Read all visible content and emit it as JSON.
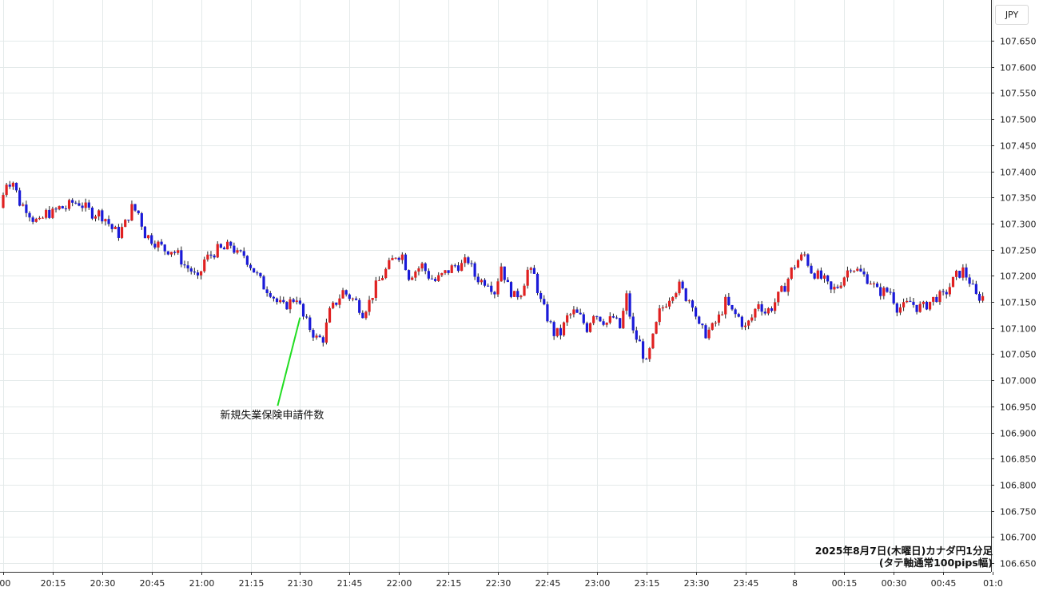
{
  "chart_data": {
    "type": "candlestick",
    "currency": "JPY",
    "caption_line1": "2025年8月7日(木曜日)カナダ円1分足",
    "caption_line2": "(タテ軸通常100pips幅)",
    "y_ticks": [
      "107.650",
      "107.600",
      "107.550",
      "107.500",
      "107.450",
      "107.400",
      "107.350",
      "107.300",
      "107.250",
      "107.200",
      "107.150",
      "107.100",
      "107.050",
      "107.000",
      "106.950",
      "106.900",
      "106.850",
      "106.800",
      "106.750",
      "106.700",
      "106.650"
    ],
    "ylim": [
      106.64,
      107.695
    ],
    "x_ticks": [
      ":00",
      "20:15",
      "20:30",
      "20:45",
      "21:00",
      "21:15",
      "21:30",
      "21:45",
      "22:00",
      "22:15",
      "22:30",
      "22:45",
      "23:00",
      "23:15",
      "23:30",
      "23:45",
      "8",
      "00:15",
      "00:30",
      "00:45",
      "01:0"
    ],
    "x_range_minutes": [
      0,
      300
    ],
    "up_color": "#e02020",
    "down_color": "#1a1ad8",
    "annotation": {
      "text": "新規失業保険申請件数",
      "minute": 90,
      "price": 107.12
    },
    "price_path": [
      [
        0,
        107.33
      ],
      [
        2,
        107.38
      ],
      [
        4,
        107.38
      ],
      [
        6,
        107.34
      ],
      [
        8,
        107.33
      ],
      [
        10,
        107.31
      ],
      [
        12,
        107.3
      ],
      [
        14,
        107.32
      ],
      [
        16,
        107.32
      ],
      [
        18,
        107.33
      ],
      [
        20,
        107.33
      ],
      [
        22,
        107.34
      ],
      [
        24,
        107.34
      ],
      [
        26,
        107.33
      ],
      [
        28,
        107.32
      ],
      [
        30,
        107.32
      ],
      [
        32,
        107.31
      ],
      [
        34,
        107.29
      ],
      [
        36,
        107.28
      ],
      [
        38,
        107.3
      ],
      [
        40,
        107.33
      ],
      [
        42,
        107.32
      ],
      [
        44,
        107.28
      ],
      [
        46,
        107.27
      ],
      [
        48,
        107.26
      ],
      [
        50,
        107.25
      ],
      [
        52,
        107.25
      ],
      [
        54,
        107.24
      ],
      [
        56,
        107.22
      ],
      [
        58,
        107.21
      ],
      [
        60,
        107.19
      ],
      [
        62,
        107.23
      ],
      [
        64,
        107.24
      ],
      [
        66,
        107.25
      ],
      [
        68,
        107.25
      ],
      [
        70,
        107.26
      ],
      [
        72,
        107.24
      ],
      [
        74,
        107.24
      ],
      [
        76,
        107.22
      ],
      [
        78,
        107.2
      ],
      [
        80,
        107.18
      ],
      [
        82,
        107.17
      ],
      [
        84,
        107.15
      ],
      [
        86,
        107.14
      ],
      [
        88,
        107.15
      ],
      [
        90,
        107.16
      ],
      [
        92,
        107.12
      ],
      [
        94,
        107.1
      ],
      [
        96,
        107.08
      ],
      [
        98,
        107.08
      ],
      [
        100,
        107.13
      ],
      [
        102,
        107.15
      ],
      [
        104,
        107.17
      ],
      [
        106,
        107.16
      ],
      [
        108,
        107.15
      ],
      [
        110,
        107.13
      ],
      [
        112,
        107.15
      ],
      [
        114,
        107.18
      ],
      [
        116,
        107.2
      ],
      [
        118,
        107.22
      ],
      [
        120,
        107.24
      ],
      [
        122,
        107.24
      ],
      [
        124,
        107.2
      ],
      [
        126,
        107.21
      ],
      [
        128,
        107.22
      ],
      [
        130,
        107.2
      ],
      [
        132,
        107.19
      ],
      [
        134,
        107.2
      ],
      [
        136,
        107.21
      ],
      [
        138,
        107.22
      ],
      [
        140,
        107.22
      ],
      [
        142,
        107.23
      ],
      [
        144,
        107.2
      ],
      [
        146,
        107.19
      ],
      [
        148,
        107.19
      ],
      [
        150,
        107.17
      ],
      [
        152,
        107.22
      ],
      [
        154,
        107.18
      ],
      [
        156,
        107.16
      ],
      [
        158,
        107.17
      ],
      [
        160,
        107.21
      ],
      [
        162,
        107.2
      ],
      [
        164,
        107.15
      ],
      [
        166,
        107.12
      ],
      [
        168,
        107.09
      ],
      [
        170,
        107.09
      ],
      [
        172,
        107.12
      ],
      [
        174,
        107.13
      ],
      [
        176,
        107.12
      ],
      [
        178,
        107.1
      ],
      [
        180,
        107.13
      ],
      [
        182,
        107.12
      ],
      [
        184,
        107.11
      ],
      [
        186,
        107.12
      ],
      [
        188,
        107.1
      ],
      [
        190,
        107.16
      ],
      [
        192,
        107.09
      ],
      [
        194,
        107.07
      ],
      [
        196,
        107.03
      ],
      [
        198,
        107.08
      ],
      [
        200,
        107.13
      ],
      [
        202,
        107.15
      ],
      [
        204,
        107.17
      ],
      [
        206,
        107.18
      ],
      [
        208,
        107.16
      ],
      [
        210,
        107.15
      ],
      [
        212,
        107.1
      ],
      [
        214,
        107.09
      ],
      [
        216,
        107.1
      ],
      [
        218,
        107.12
      ],
      [
        220,
        107.15
      ],
      [
        222,
        107.13
      ],
      [
        224,
        107.12
      ],
      [
        226,
        107.1
      ],
      [
        228,
        107.12
      ],
      [
        230,
        107.15
      ],
      [
        232,
        107.13
      ],
      [
        234,
        107.14
      ],
      [
        236,
        107.16
      ],
      [
        238,
        107.18
      ],
      [
        240,
        107.21
      ],
      [
        242,
        107.23
      ],
      [
        244,
        107.24
      ],
      [
        246,
        107.21
      ],
      [
        248,
        107.2
      ],
      [
        250,
        107.19
      ],
      [
        252,
        107.17
      ],
      [
        254,
        107.18
      ],
      [
        256,
        107.2
      ],
      [
        258,
        107.22
      ],
      [
        260,
        107.21
      ],
      [
        262,
        107.2
      ],
      [
        264,
        107.19
      ],
      [
        266,
        107.17
      ],
      [
        268,
        107.17
      ],
      [
        270,
        107.17
      ],
      [
        272,
        107.14
      ],
      [
        274,
        107.14
      ],
      [
        276,
        107.15
      ],
      [
        278,
        107.14
      ],
      [
        280,
        107.14
      ],
      [
        282,
        107.15
      ],
      [
        284,
        107.16
      ],
      [
        286,
        107.16
      ],
      [
        288,
        107.18
      ],
      [
        290,
        107.2
      ],
      [
        292,
        107.21
      ],
      [
        294,
        107.19
      ],
      [
        296,
        107.16
      ],
      [
        297,
        107.16
      ]
    ]
  }
}
